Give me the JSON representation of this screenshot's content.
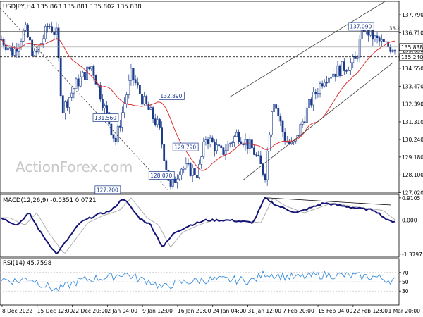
{
  "chart_data": [
    {
      "type": "candlestick",
      "panel": "price",
      "header": "USDJPY,H4  135.863 135.881 135.802 135.838",
      "symbol": "USDJPY,H4",
      "ohlc_readout": [
        "135.863",
        "135.881",
        "135.802",
        "135.838"
      ],
      "watermark": "ActionForex.com",
      "ylim": [
        127.0,
        138.6
      ],
      "yticks": [
        127.02,
        128.1,
        129.18,
        130.24,
        131.31,
        132.39,
        133.47,
        134.55,
        135.63,
        136.71,
        137.79
      ],
      "ytick_labels": [
        "127.020",
        "128.100",
        "129.180",
        "130.240",
        "131.310",
        "132.390",
        "133.470",
        "134.550",
        "135.630",
        "136.710",
        "137.790"
      ],
      "current_price": {
        "value": 135.838,
        "label": "135.838"
      },
      "level_line": {
        "value": 135.24,
        "label": "135.240"
      },
      "fib_line": {
        "value": 136.78,
        "label": "38.2"
      },
      "annotations": [
        {
          "label": "127.200",
          "x": 0.27,
          "y": 127.2
        },
        {
          "label": "131.560",
          "x": 0.265,
          "y": 131.56
        },
        {
          "label": "132.890",
          "x": 0.43,
          "y": 132.89
        },
        {
          "label": "129.790",
          "x": 0.465,
          "y": 129.79
        },
        {
          "label": "128.070",
          "x": 0.405,
          "y": 128.07
        },
        {
          "label": "137.090",
          "x": 0.905,
          "y": 137.09
        }
      ],
      "moving_average": "red",
      "channel": "rising",
      "downtrend_line": "dashed",
      "colors": {
        "candles": "#1a3a8c",
        "ma": "#e03030",
        "channel": "#404040"
      }
    },
    {
      "type": "line",
      "panel": "macd",
      "header": "MACD(12,26,9) -0.0351 0.0721",
      "ylim": [
        -1.5,
        1.05
      ],
      "yticks": [
        0.9105,
        0.0,
        -1.3797
      ],
      "ytick_labels": [
        "0.9105",
        "0.000",
        "-1.3797"
      ],
      "colors": {
        "macd": "#141478",
        "signal": "#b0b0b0"
      }
    },
    {
      "type": "line",
      "panel": "rsi",
      "header": "RSI(14) 45.7598",
      "ylim": [
        0,
        100
      ],
      "yticks": [
        70,
        50,
        30
      ],
      "ytick_labels": [
        "70",
        "50",
        "30"
      ],
      "colors": {
        "rsi": "#3a8edc"
      }
    }
  ],
  "x_axis": {
    "labels": [
      "8 Dec 2022",
      "15 Dec 12:00",
      "22 Dec 20:00",
      "2 Jan 04:00",
      "9 Jan 12:00",
      "16 Jan 20:00",
      "24 Jan 04:00",
      "31 Jan 12:00",
      "7 Feb 20:00",
      "15 Feb 04:00",
      "22 Feb 12:00",
      "1 Mar 20:00"
    ]
  }
}
